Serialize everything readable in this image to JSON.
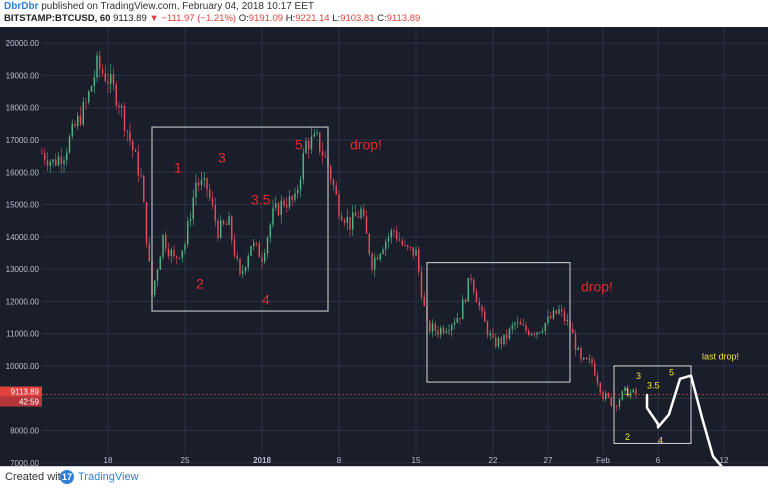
{
  "header": {
    "author": "DbrDbr",
    "published_text": "published on TradingView.com, February 04, 2018 10:17 EET",
    "symbol": "BITSTAMP:BTCUSD, 60",
    "last": "9113.89",
    "change": "−111.97 (−1.21%)",
    "open_label": "O:",
    "open": "9191.09",
    "high_label": "H:",
    "high": "9221.14",
    "low_label": "L:",
    "low": "9103.81",
    "close_label": "C:",
    "close": "9113.89"
  },
  "footer": {
    "created_with": "Created with",
    "brand": "TradingView",
    "logo": "17"
  },
  "colors": {
    "background": "#1a1e2b",
    "grid": "#2c3242",
    "up": "#53b987",
    "down": "#eb4d5c",
    "annotation_red": "#e02b2b",
    "annotation_yellow": "#f1e332",
    "box": "#d8d8d8",
    "price_line": "#e0413b"
  },
  "chart_data": {
    "type": "candlestick",
    "title": "BITSTAMP:BTCUSD, 60",
    "xlabel": "",
    "ylabel": "",
    "ylim": [
      6900,
      20500
    ],
    "y_ticks": [
      7000,
      8000,
      9000,
      10000,
      11000,
      12000,
      13000,
      14000,
      15000,
      16000,
      17000,
      18000,
      19000,
      20000
    ],
    "y_tick_labels": [
      "7000.00",
      "8000.00",
      "9000.00",
      "10000.00",
      "11000.00",
      "12000.00",
      "13000.00",
      "14000.00",
      "15000.00",
      "16000.00",
      "17000.00",
      "18000.00",
      "19000.00",
      "20000.00"
    ],
    "x_range": [
      "2017-12-12",
      "2018-02-13"
    ],
    "x_ticks": [
      {
        "date": "2017-12-18",
        "label": "18"
      },
      {
        "date": "2017-12-25",
        "label": "25"
      },
      {
        "date": "2018-01-01",
        "label": "2018",
        "bold": true
      },
      {
        "date": "2018-01-08",
        "label": "8"
      },
      {
        "date": "2018-01-15",
        "label": "15"
      },
      {
        "date": "2018-01-22",
        "label": "22"
      },
      {
        "date": "2018-01-27",
        "label": "27"
      },
      {
        "date": "2018-02-01",
        "label": "Feb"
      },
      {
        "date": "2018-02-06",
        "label": "6"
      },
      {
        "date": "2018-02-12",
        "label": "12"
      }
    ],
    "price_path": [
      [
        "2017-12-12",
        16600
      ],
      [
        "2017-12-13",
        16300
      ],
      [
        "2017-12-14",
        16600
      ],
      [
        "2017-12-15",
        17400
      ],
      [
        "2017-12-16",
        18100
      ],
      [
        "2017-12-17",
        19300
      ],
      [
        "2017-12-18",
        18900
      ],
      [
        "2017-12-19",
        18200
      ],
      [
        "2017-12-20",
        17000
      ],
      [
        "2017-12-21",
        15800
      ],
      [
        "2017-12-22",
        12200
      ],
      [
        "2017-12-23",
        14000
      ],
      [
        "2017-12-24",
        13300
      ],
      [
        "2017-12-25",
        13800
      ],
      [
        "2017-12-26",
        15700
      ],
      [
        "2017-12-27",
        15500
      ],
      [
        "2017-12-28",
        14200
      ],
      [
        "2017-12-29",
        14400
      ],
      [
        "2017-12-30",
        12700
      ],
      [
        "2017-12-31",
        13800
      ],
      [
        "2018-01-01",
        13400
      ],
      [
        "2018-01-02",
        14700
      ],
      [
        "2018-01-03",
        15100
      ],
      [
        "2018-01-04",
        15100
      ],
      [
        "2018-01-05",
        16900
      ],
      [
        "2018-01-06",
        17000
      ],
      [
        "2018-01-07",
        16200
      ],
      [
        "2018-01-08",
        14900
      ],
      [
        "2018-01-09",
        14400
      ],
      [
        "2018-01-10",
        14800
      ],
      [
        "2018-01-11",
        13200
      ],
      [
        "2018-01-12",
        13800
      ],
      [
        "2018-01-13",
        14200
      ],
      [
        "2018-01-14",
        13600
      ],
      [
        "2018-01-15",
        13500
      ],
      [
        "2018-01-16",
        11200
      ],
      [
        "2018-01-17",
        11100
      ],
      [
        "2018-01-18",
        11300
      ],
      [
        "2018-01-19",
        11600
      ],
      [
        "2018-01-20",
        12800
      ],
      [
        "2018-01-21",
        11500
      ],
      [
        "2018-01-22",
        10700
      ],
      [
        "2018-01-23",
        10800
      ],
      [
        "2018-01-24",
        11300
      ],
      [
        "2018-01-25",
        11100
      ],
      [
        "2018-01-26",
        11100
      ],
      [
        "2018-01-27",
        11400
      ],
      [
        "2018-01-28",
        11700
      ],
      [
        "2018-01-29",
        11200
      ],
      [
        "2018-01-30",
        10100
      ],
      [
        "2018-01-31",
        10100
      ],
      [
        "2018-02-01",
        9100
      ],
      [
        "2018-02-02",
        8800
      ],
      [
        "2018-02-03",
        9200
      ],
      [
        "2018-02-04",
        9113.89
      ]
    ],
    "last_price": 9113.89,
    "last_price_label": "9113.89",
    "countdown_label": "42:59",
    "boxes": [
      {
        "x0": "2017-12-22",
        "x1": "2018-01-07",
        "y0": 11700,
        "y1": 17400
      },
      {
        "x0": "2018-01-16",
        "x1": "2018-01-29",
        "y0": 9500,
        "y1": 13200
      },
      {
        "x0": "2018-02-02",
        "x1": "2018-02-09",
        "y0": 7600,
        "y1": 10000
      }
    ],
    "annotations": [
      {
        "text": "1",
        "date": "2017-12-24",
        "price": 16000,
        "color": "red",
        "size": "large"
      },
      {
        "text": "2",
        "date": "2017-12-26",
        "price": 12400,
        "color": "red",
        "size": "large"
      },
      {
        "text": "3",
        "date": "2017-12-28",
        "price": 16300,
        "color": "red",
        "size": "large"
      },
      {
        "text": "3.5",
        "date": "2017-12-31",
        "price": 15000,
        "color": "red",
        "size": "large"
      },
      {
        "text": "4",
        "date": "2018-01-01",
        "price": 11900,
        "color": "red",
        "size": "large"
      },
      {
        "text": "5",
        "date": "2018-01-04",
        "price": 16700,
        "color": "red",
        "size": "large"
      },
      {
        "text": "drop!",
        "date": "2018-01-09",
        "price": 16700,
        "color": "red",
        "size": "large"
      },
      {
        "text": "drop!",
        "date": "2018-01-30",
        "price": 12300,
        "color": "red",
        "size": "large"
      },
      {
        "text": "1",
        "date": "2018-02-03",
        "price": 9100,
        "color": "yellow",
        "size": "small"
      },
      {
        "text": "2",
        "date": "2018-02-03",
        "price": 7700,
        "color": "yellow",
        "size": "small"
      },
      {
        "text": "3",
        "date": "2018-02-04",
        "price": 9600,
        "color": "yellow",
        "size": "small"
      },
      {
        "text": "3.5",
        "date": "2018-02-05",
        "price": 9300,
        "color": "yellow",
        "size": "small"
      },
      {
        "text": "4",
        "date": "2018-02-06",
        "price": 7600,
        "color": "yellow",
        "size": "small"
      },
      {
        "text": "5",
        "date": "2018-02-07",
        "price": 9700,
        "color": "yellow",
        "size": "small"
      },
      {
        "text": "last drop!",
        "date": "2018-02-10",
        "price": 10200,
        "color": "yellow",
        "size": "small"
      }
    ],
    "projection": [
      [
        "2018-02-05",
        9100
      ],
      [
        "2018-02-05",
        8700
      ],
      [
        "2018-02-06",
        8200
      ],
      [
        "2018-02-06",
        8100
      ],
      [
        "2018-02-07",
        8500
      ],
      [
        "2018-02-08",
        9600
      ],
      [
        "2018-02-09",
        9700
      ],
      [
        "2018-02-10",
        8400
      ],
      [
        "2018-02-11",
        7200
      ],
      [
        "2018-02-12",
        6800
      ]
    ]
  }
}
